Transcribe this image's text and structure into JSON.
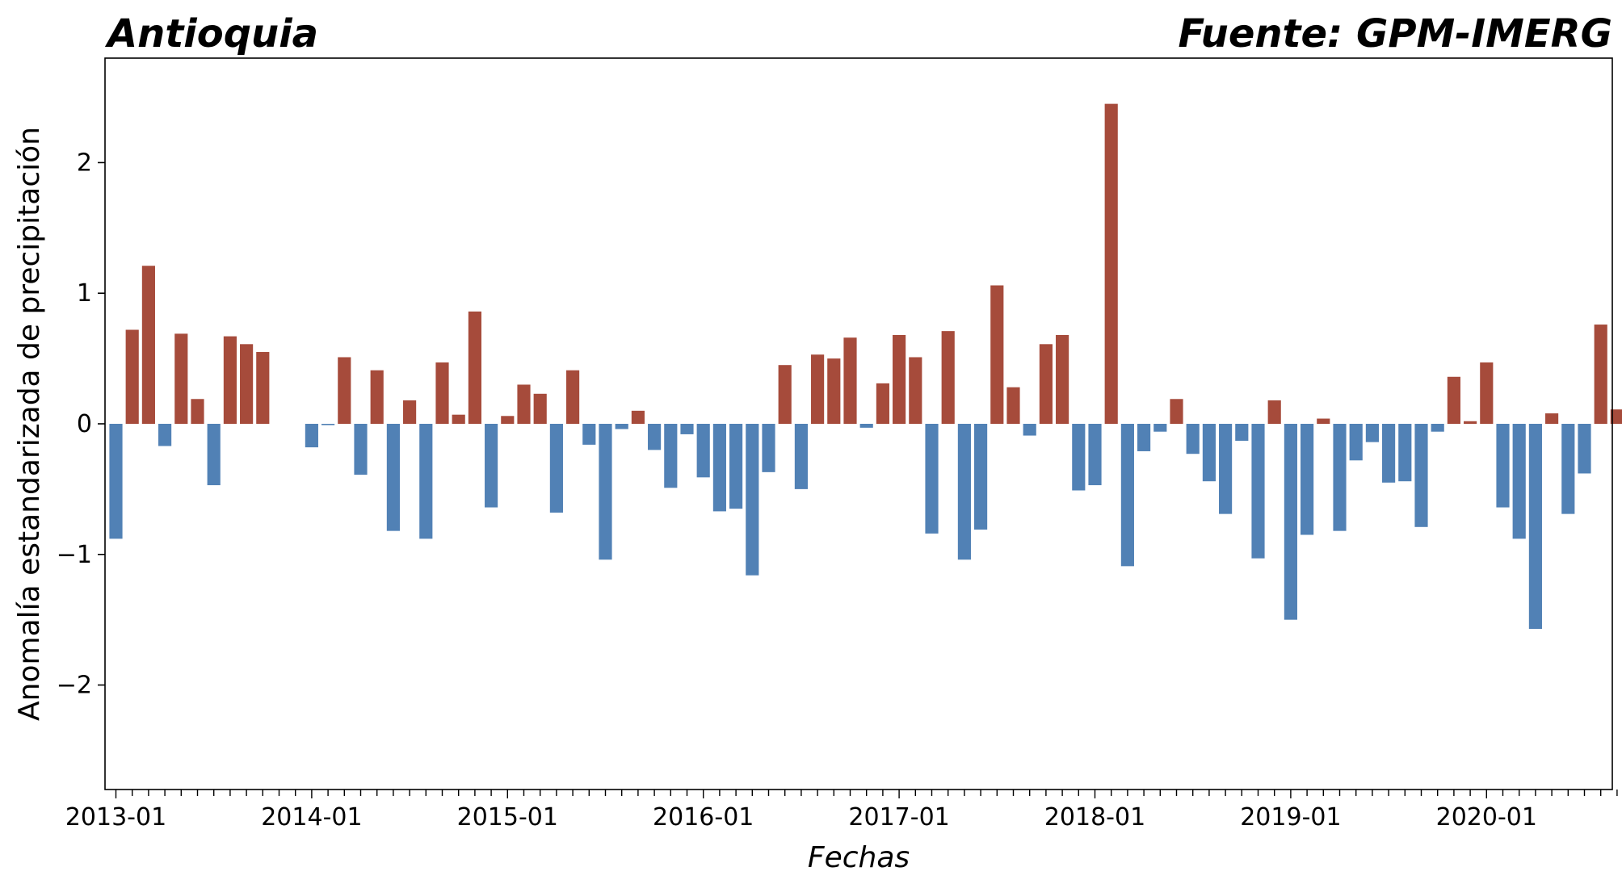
{
  "chart_data": {
    "type": "bar",
    "title_left": "Antioquia",
    "title_right": "Fuente: GPM-IMERG",
    "xlabel": "Fechas",
    "ylabel": "Anomalía estandarizada de precipitación",
    "ylim": [
      -2.8,
      2.8
    ],
    "yticks": [
      -2,
      -1,
      0,
      1,
      2
    ],
    "ytick_labels": [
      "−2",
      "−1",
      "0",
      "1",
      "2"
    ],
    "xtick_labels": [
      "2013-01",
      "2014-01",
      "2015-01",
      "2016-01",
      "2017-01",
      "2018-01",
      "2019-01",
      "2020-01"
    ],
    "start": "2013-01",
    "grid": false,
    "colors": {
      "positive": "#a64b3b",
      "negative": "#5181b5"
    },
    "values": [
      -0.88,
      0.72,
      1.21,
      -0.17,
      0.69,
      0.19,
      -0.47,
      0.67,
      0.61,
      0.55,
      0.0,
      0.0,
      -0.18,
      -0.01,
      0.51,
      -0.39,
      0.41,
      -0.82,
      0.18,
      -0.88,
      0.47,
      0.07,
      0.86,
      -0.64,
      0.06,
      0.3,
      0.23,
      -0.68,
      0.41,
      -0.16,
      -1.04,
      -0.04,
      0.1,
      -0.2,
      -0.49,
      -0.08,
      -0.41,
      -0.67,
      -0.65,
      -1.16,
      -0.37,
      0.45,
      -0.5,
      0.53,
      0.5,
      0.66,
      -0.03,
      0.31,
      0.68,
      0.51,
      -0.84,
      0.71,
      -1.04,
      -0.81,
      1.06,
      0.28,
      -0.09,
      0.61,
      0.68,
      -0.51,
      -0.47,
      2.45,
      -1.09,
      -0.21,
      -0.06,
      0.19,
      -0.23,
      -0.44,
      -0.69,
      -0.13,
      -1.03,
      0.18,
      -1.5,
      -0.85,
      0.04,
      -0.82,
      -0.28,
      -0.14,
      -0.45,
      -0.44,
      -0.79,
      -0.06,
      0.36,
      0.02,
      0.47,
      -0.64,
      -0.88,
      -1.57,
      0.08,
      -0.69,
      -0.38,
      0.76,
      0.11
    ]
  }
}
